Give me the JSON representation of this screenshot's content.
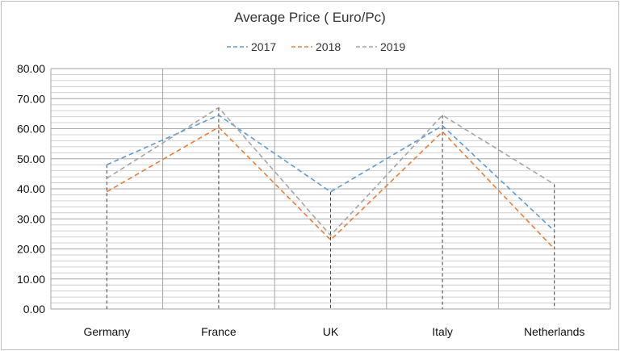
{
  "chart_data": {
    "type": "line",
    "title": "Average Price ( Euro/Pc)",
    "xlabel": "",
    "ylabel": "",
    "categories": [
      "Germany",
      "France",
      "UK",
      "Italy",
      "Netherlands"
    ],
    "ylim": [
      0,
      80
    ],
    "y_ticks": [
      "0.00",
      "10.00",
      "20.00",
      "30.00",
      "40.00",
      "50.00",
      "60.00",
      "70.00",
      "80.00"
    ],
    "grid": true,
    "legend_position": "top",
    "series": [
      {
        "name": "2017",
        "values": [
          48,
          64.5,
          39,
          61,
          26
        ],
        "color": "#5b9bd5",
        "line_style": "dashed"
      },
      {
        "name": "2018",
        "values": [
          39,
          60.5,
          23,
          59,
          20
        ],
        "color": "#ed7d31",
        "line_style": "dashed"
      },
      {
        "name": "2019",
        "values": [
          43.5,
          67,
          24.5,
          64.5,
          41.5
        ],
        "color": "#a5a5a5",
        "line_style": "dashed"
      }
    ]
  }
}
